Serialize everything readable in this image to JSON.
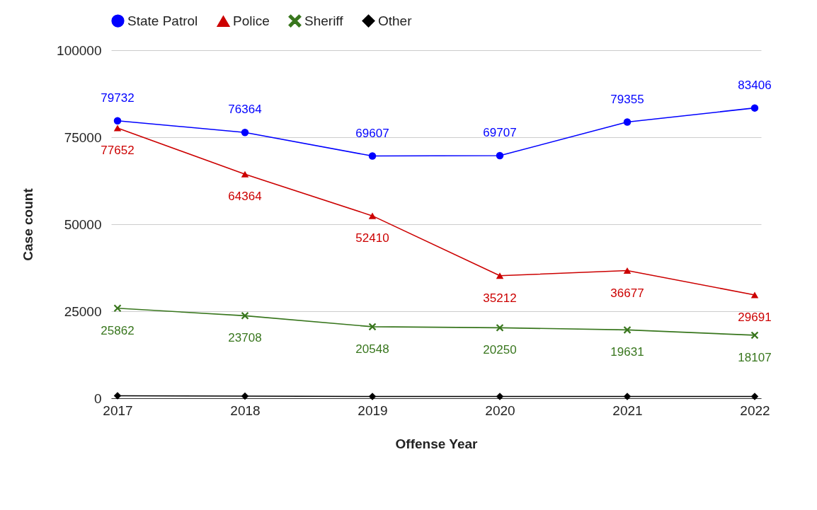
{
  "chart_data": {
    "type": "line",
    "xlabel": "Offense Year",
    "ylabel": "Case count",
    "categories": [
      "2017",
      "2018",
      "2019",
      "2020",
      "2021",
      "2022"
    ],
    "series": [
      {
        "name": "State Patrol",
        "color": "#0000ff",
        "marker": "circle",
        "values": [
          79732,
          76364,
          69607,
          69707,
          79355,
          83406
        ],
        "value_labels": [
          "79732",
          "76364",
          "69607",
          "69707",
          "79355",
          "83406"
        ]
      },
      {
        "name": "Police",
        "color": "#cc0000",
        "marker": "triangle",
        "values": [
          77652,
          64364,
          52410,
          35212,
          36677,
          29691
        ],
        "value_labels": [
          "77652",
          "64364",
          "52410",
          "35212",
          "36677",
          "29691"
        ]
      },
      {
        "name": "Sheriff",
        "color": "#38761d",
        "marker": "cross",
        "values": [
          25862,
          23708,
          20548,
          20250,
          19631,
          18107
        ],
        "value_labels": [
          "25862",
          "23708",
          "20548",
          "20250",
          "19631",
          "18107"
        ]
      },
      {
        "name": "Other",
        "color": "#000000",
        "marker": "diamond",
        "values": [
          700,
          600,
          500,
          500,
          500,
          500
        ]
      }
    ],
    "ylim": [
      0,
      100000
    ],
    "yticks": [
      0,
      25000,
      50000,
      75000,
      100000
    ],
    "grid": "y",
    "legend": "top"
  }
}
